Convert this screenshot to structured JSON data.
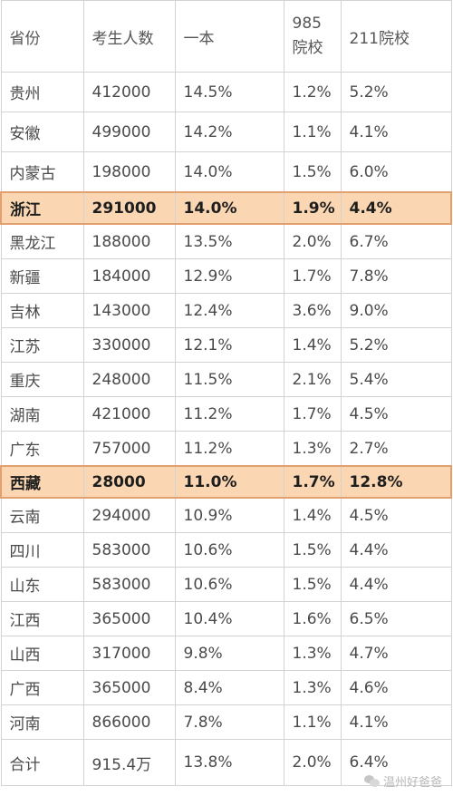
{
  "headers": {
    "province": "省份",
    "examinees": "考生人数",
    "tier1": "一本",
    "c985_top": "985",
    "c985_bottom": "院校",
    "c211": "211院校"
  },
  "rows": [
    {
      "province": "贵州",
      "examinees": "412000",
      "tier1": "14.5%",
      "c985": "1.2%",
      "c211": "5.2%"
    },
    {
      "province": "安徽",
      "examinees": "499000",
      "tier1": "14.2%",
      "c985": "1.1%",
      "c211": "4.1%"
    },
    {
      "province": "内蒙古",
      "examinees": "198000",
      "tier1": "14.0%",
      "c985": "1.5%",
      "c211": "6.0%"
    },
    {
      "province": "浙江",
      "examinees": "291000",
      "tier1": "14.0%",
      "c985": "1.9%",
      "c211": "4.4%",
      "highlight": true
    },
    {
      "province": "黑龙江",
      "examinees": "188000",
      "tier1": "13.5%",
      "c985": "2.0%",
      "c211": "6.7%"
    },
    {
      "province": "新疆",
      "examinees": "184000",
      "tier1": "12.9%",
      "c985": "1.7%",
      "c211": "7.8%"
    },
    {
      "province": "吉林",
      "examinees": "143000",
      "tier1": "12.4%",
      "c985": "3.6%",
      "c211": "9.0%"
    },
    {
      "province": "江苏",
      "examinees": "330000",
      "tier1": "12.1%",
      "c985": "1.4%",
      "c211": "5.2%"
    },
    {
      "province": "重庆",
      "examinees": "248000",
      "tier1": "11.5%",
      "c985": "2.1%",
      "c211": "5.4%"
    },
    {
      "province": "湖南",
      "examinees": "421000",
      "tier1": "11.2%",
      "c985": "1.7%",
      "c211": "4.5%"
    },
    {
      "province": "广东",
      "examinees": "757000",
      "tier1": "11.2%",
      "c985": "1.3%",
      "c211": "2.7%"
    },
    {
      "province": "西藏",
      "examinees": "28000",
      "tier1": "11.0%",
      "c985": "1.7%",
      "c211": "12.8%",
      "highlight": true
    },
    {
      "province": "云南",
      "examinees": "294000",
      "tier1": "10.9%",
      "c985": "1.4%",
      "c211": "4.5%"
    },
    {
      "province": "四川",
      "examinees": "583000",
      "tier1": "10.6%",
      "c985": "1.5%",
      "c211": "4.4%"
    },
    {
      "province": "山东",
      "examinees": "583000",
      "tier1": "10.6%",
      "c985": "1.5%",
      "c211": "4.4%"
    },
    {
      "province": "江西",
      "examinees": "365000",
      "tier1": "10.4%",
      "c985": "1.6%",
      "c211": "6.5%"
    },
    {
      "province": "山西",
      "examinees": "317000",
      "tier1": "9.8%",
      "c985": "1.3%",
      "c211": "4.7%"
    },
    {
      "province": "广西",
      "examinees": "365000",
      "tier1": "8.4%",
      "c985": "1.3%",
      "c211": "4.6%"
    },
    {
      "province": "河南",
      "examinees": "866000",
      "tier1": "7.8%",
      "c985": "1.1%",
      "c211": "4.1%"
    }
  ],
  "total": {
    "province": "合计",
    "examinees": "915.4万",
    "tier1": "13.8%",
    "c985": "2.0%",
    "c211": "6.4%"
  },
  "watermark": "温州好爸爸",
  "colors": {
    "highlight_fill": "#fbd6b2",
    "highlight_border": "#e2a070",
    "grid": "#d3d3d3"
  }
}
